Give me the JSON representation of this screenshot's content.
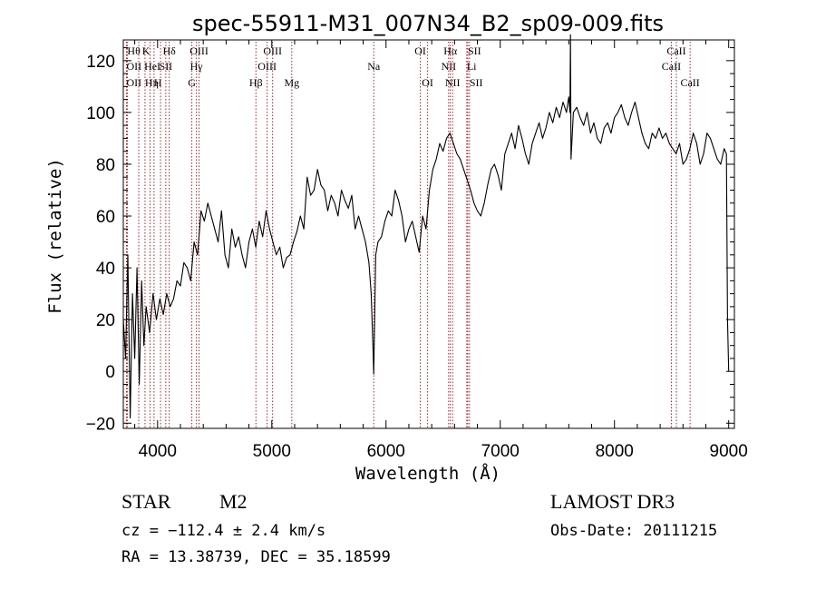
{
  "chart_data": {
    "type": "line",
    "title": "spec-55911-M31_007N34_B2_sp09-009.fits",
    "xlabel": "Wavelength (Å)",
    "ylabel": "Flux (relative)",
    "xlim": [
      3700,
      9050
    ],
    "ylim": [
      -22,
      128
    ],
    "xticks": [
      4000,
      5000,
      6000,
      7000,
      8000,
      9000
    ],
    "yticks": [
      -20,
      0,
      20,
      40,
      60,
      80,
      100,
      120
    ],
    "series": [
      {
        "name": "spectrum",
        "x": [
          3700,
          3720,
          3740,
          3760,
          3780,
          3800,
          3820,
          3840,
          3860,
          3880,
          3900,
          3930,
          3960,
          3990,
          4020,
          4050,
          4080,
          4110,
          4140,
          4170,
          4200,
          4230,
          4260,
          4290,
          4320,
          4350,
          4380,
          4410,
          4440,
          4470,
          4500,
          4530,
          4560,
          4590,
          4620,
          4650,
          4680,
          4710,
          4740,
          4770,
          4800,
          4830,
          4860,
          4890,
          4920,
          4950,
          4980,
          5010,
          5040,
          5070,
          5100,
          5130,
          5160,
          5190,
          5220,
          5250,
          5280,
          5310,
          5340,
          5370,
          5400,
          5430,
          5460,
          5490,
          5520,
          5550,
          5580,
          5610,
          5640,
          5670,
          5700,
          5730,
          5760,
          5790,
          5820,
          5850,
          5870,
          5885,
          5892,
          5900,
          5910,
          5930,
          5960,
          5990,
          6020,
          6050,
          6080,
          6110,
          6140,
          6170,
          6200,
          6230,
          6260,
          6290,
          6320,
          6350,
          6380,
          6410,
          6440,
          6470,
          6500,
          6530,
          6560,
          6590,
          6620,
          6650,
          6680,
          6710,
          6740,
          6770,
          6800,
          6830,
          6860,
          6890,
          6920,
          6950,
          6980,
          7010,
          7040,
          7070,
          7100,
          7130,
          7160,
          7190,
          7220,
          7250,
          7280,
          7310,
          7340,
          7370,
          7400,
          7430,
          7460,
          7490,
          7520,
          7550,
          7580,
          7600,
          7605,
          7610,
          7615,
          7620,
          7640,
          7670,
          7700,
          7730,
          7760,
          7790,
          7820,
          7850,
          7880,
          7910,
          7940,
          7970,
          8000,
          8030,
          8060,
          8090,
          8120,
          8150,
          8180,
          8210,
          8240,
          8270,
          8300,
          8330,
          8360,
          8390,
          8420,
          8450,
          8480,
          8510,
          8540,
          8570,
          8600,
          8630,
          8660,
          8690,
          8720,
          8750,
          8780,
          8810,
          8840,
          8870,
          8900,
          8930,
          8960,
          8980,
          8990,
          9000
        ],
        "values": [
          20,
          5,
          45,
          -18,
          30,
          5,
          40,
          -5,
          35,
          10,
          25,
          15,
          30,
          20,
          28,
          22,
          30,
          25,
          28,
          35,
          33,
          42,
          40,
          35,
          50,
          45,
          62,
          58,
          65,
          60,
          55,
          50,
          62,
          45,
          40,
          55,
          48,
          52,
          45,
          40,
          50,
          55,
          48,
          58,
          52,
          62,
          55,
          50,
          45,
          48,
          40,
          44,
          45,
          50,
          54,
          60,
          55,
          75,
          68,
          70,
          78,
          72,
          70,
          62,
          68,
          65,
          60,
          70,
          66,
          63,
          68,
          55,
          60,
          55,
          50,
          42,
          30,
          10,
          -1,
          20,
          45,
          50,
          52,
          58,
          62,
          60,
          70,
          66,
          60,
          50,
          55,
          58,
          52,
          46,
          60,
          55,
          70,
          78,
          82,
          88,
          85,
          90,
          92,
          88,
          84,
          82,
          78,
          74,
          70,
          65,
          62,
          60,
          65,
          72,
          78,
          80,
          76,
          70,
          84,
          88,
          92,
          86,
          95,
          90,
          84,
          80,
          88,
          92,
          96,
          90,
          94,
          100,
          96,
          102,
          98,
          104,
          100,
          106,
          103,
          100,
          130,
          82,
          100,
          102,
          98,
          95,
          100,
          92,
          96,
          90,
          88,
          94,
          96,
          92,
          98,
          100,
          103,
          98,
          95,
          100,
          104,
          98,
          92,
          88,
          86,
          92,
          90,
          94,
          90,
          92,
          88,
          86,
          84,
          88,
          80,
          82,
          86,
          92,
          88,
          80,
          84,
          92,
          90,
          86,
          82,
          80,
          86,
          84,
          20,
          0
        ]
      }
    ],
    "lines": [
      {
        "x": 3735,
        "label": "Hθ",
        "row": 0,
        "align": "start"
      },
      {
        "x": 3728,
        "label": "OII",
        "row": 1,
        "align": "start"
      },
      {
        "x": 3728,
        "label": "OII",
        "row": 2,
        "align": "start"
      },
      {
        "x": 3835,
        "label": "",
        "row": 0,
        "align": "start"
      },
      {
        "x": 3890,
        "label": "Hη",
        "row": 2,
        "align": "start"
      },
      {
        "x": 3934,
        "label": "K",
        "row": 0,
        "align": "end"
      },
      {
        "x": 3969,
        "label": "H",
        "row": 2,
        "align": "start"
      },
      {
        "x": 4026,
        "label": "HeI",
        "row": 1,
        "align": "end"
      },
      {
        "x": 4072,
        "label": "SII",
        "row": 1,
        "align": "middle"
      },
      {
        "x": 4102,
        "label": "Hδ",
        "row": 0,
        "align": "middle"
      },
      {
        "x": 4300,
        "label": "G",
        "row": 2,
        "align": "middle"
      },
      {
        "x": 4340,
        "label": "Hγ",
        "row": 1,
        "align": "middle"
      },
      {
        "x": 4363,
        "label": "OIII",
        "row": 0,
        "align": "middle"
      },
      {
        "x": 4861,
        "label": "Hβ",
        "row": 2,
        "align": "middle"
      },
      {
        "x": 4959,
        "label": "OIII",
        "row": 1,
        "align": "middle"
      },
      {
        "x": 5007,
        "label": "OIII",
        "row": 0,
        "align": "middle"
      },
      {
        "x": 5175,
        "label": "Mg",
        "row": 2,
        "align": "middle"
      },
      {
        "x": 5893,
        "label": "Na",
        "row": 1,
        "align": "middle"
      },
      {
        "x": 6300,
        "label": "OI",
        "row": 0,
        "align": "middle"
      },
      {
        "x": 6364,
        "label": "OI",
        "row": 2,
        "align": "middle"
      },
      {
        "x": 6548,
        "label": "NII",
        "row": 1,
        "align": "middle"
      },
      {
        "x": 6563,
        "label": "Hα",
        "row": 0,
        "align": "middle"
      },
      {
        "x": 6583,
        "label": "NII",
        "row": 2,
        "align": "middle"
      },
      {
        "x": 6707,
        "label": "Li",
        "row": 1,
        "align": "start"
      },
      {
        "x": 6716,
        "label": "SII",
        "row": 0,
        "align": "start"
      },
      {
        "x": 6731,
        "label": "SII",
        "row": 2,
        "align": "start"
      },
      {
        "x": 8498,
        "label": "CaII",
        "row": 1,
        "align": "middle"
      },
      {
        "x": 8542,
        "label": "CaII",
        "row": 0,
        "align": "middle"
      },
      {
        "x": 8662,
        "label": "CaII",
        "row": 2,
        "align": "middle"
      }
    ],
    "colors": {
      "spectrum": "#000000",
      "lines": "#b22222",
      "axes": "#000000"
    }
  },
  "info": {
    "class": "STAR",
    "subclass": "M2",
    "survey": "LAMOST DR3",
    "cz": "cz = −112.4 ± 2.4 km/s",
    "obs_date": "Obs-Date: 20111215",
    "coords": "RA =  13.38739, DEC =  35.18599"
  }
}
